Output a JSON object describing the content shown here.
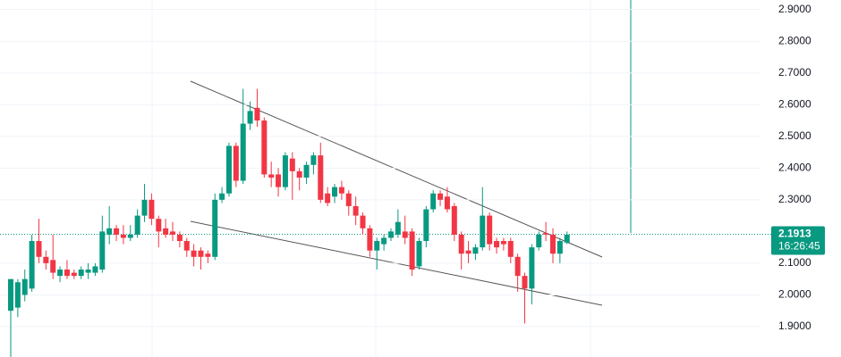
{
  "chart_data": {
    "type": "candlestick",
    "up_color": "#089981",
    "down_color": "#f23645",
    "open": [
      1.95,
      1.96,
      2.0,
      2.02,
      2.17,
      2.12,
      2.11,
      2.06,
      2.08,
      2.07,
      2.06,
      2.07,
      2.07,
      2.08,
      2.19,
      2.21,
      2.19,
      2.18,
      2.19,
      2.25,
      2.3,
      2.24,
      2.21,
      2.2,
      2.19,
      2.17,
      2.14,
      2.14,
      2.13,
      2.12,
      2.3,
      2.32,
      2.47,
      2.36,
      2.54,
      2.59,
      2.55,
      2.38,
      2.38,
      2.34,
      2.43,
      2.39,
      2.37,
      2.41,
      2.44,
      2.32,
      2.31,
      2.34,
      2.32,
      2.28,
      2.25,
      2.21,
      2.14,
      2.16,
      2.18,
      2.19,
      2.2,
      2.2,
      2.09,
      2.17,
      2.27,
      2.32,
      2.31,
      2.28,
      2.19,
      2.14,
      2.13,
      2.15,
      2.25,
      2.17,
      2.17,
      2.17,
      2.12,
      2.06,
      2.02,
      2.15,
      2.195,
      2.19,
      2.13,
      2.165
    ],
    "high": [
      2.05,
      2.05,
      2.08,
      2.19,
      2.24,
      2.14,
      2.19,
      2.09,
      2.11,
      2.08,
      2.09,
      2.1,
      2.1,
      2.25,
      2.28,
      2.22,
      2.22,
      2.22,
      2.27,
      2.35,
      2.32,
      2.25,
      2.24,
      2.23,
      2.2,
      2.18,
      2.16,
      2.15,
      2.14,
      2.32,
      2.34,
      2.48,
      2.48,
      2.65,
      2.61,
      2.65,
      2.56,
      2.42,
      2.4,
      2.45,
      2.45,
      2.4,
      2.42,
      2.45,
      2.48,
      2.34,
      2.35,
      2.36,
      2.33,
      2.31,
      2.26,
      2.22,
      2.18,
      2.19,
      2.21,
      2.27,
      2.25,
      2.21,
      2.18,
      2.28,
      2.33,
      2.33,
      2.34,
      2.29,
      2.2,
      2.17,
      2.16,
      2.34,
      2.26,
      2.18,
      2.18,
      2.18,
      2.13,
      2.07,
      2.16,
      2.2,
      2.23,
      2.21,
      2.18,
      2.2
    ],
    "low": [
      1.8,
      1.93,
      1.98,
      2.01,
      2.1,
      2.08,
      2.05,
      2.04,
      2.05,
      2.05,
      2.05,
      2.05,
      2.06,
      2.07,
      2.16,
      2.17,
      2.16,
      2.17,
      2.18,
      2.23,
      2.22,
      2.15,
      2.18,
      2.17,
      2.15,
      2.12,
      2.09,
      2.08,
      2.1,
      2.11,
      2.29,
      2.31,
      2.34,
      2.35,
      2.52,
      2.53,
      2.37,
      2.34,
      2.31,
      2.33,
      2.3,
      2.33,
      2.35,
      2.38,
      2.29,
      2.28,
      2.29,
      2.3,
      2.25,
      2.22,
      2.19,
      2.12,
      2.08,
      2.14,
      2.17,
      2.18,
      2.16,
      2.06,
      2.08,
      2.15,
      2.26,
      2.28,
      2.26,
      2.17,
      2.08,
      2.1,
      2.11,
      2.14,
      2.14,
      2.13,
      2.14,
      2.1,
      2.01,
      1.91,
      1.97,
      2.14,
      2.17,
      2.1,
      2.1,
      2.16
    ],
    "close": [
      2.05,
      2.04,
      2.05,
      2.17,
      2.12,
      2.1,
      2.07,
      2.08,
      2.06,
      2.06,
      2.08,
      2.08,
      2.09,
      2.2,
      2.21,
      2.19,
      2.18,
      2.19,
      2.25,
      2.3,
      2.24,
      2.2,
      2.19,
      2.19,
      2.17,
      2.14,
      2.12,
      2.12,
      2.12,
      2.3,
      2.32,
      2.47,
      2.36,
      2.54,
      2.58,
      2.55,
      2.38,
      2.37,
      2.34,
      2.44,
      2.39,
      2.37,
      2.41,
      2.44,
      2.3,
      2.29,
      2.34,
      2.32,
      2.28,
      2.25,
      2.21,
      2.14,
      2.17,
      2.18,
      2.2,
      2.23,
      2.18,
      2.08,
      2.17,
      2.27,
      2.32,
      2.3,
      2.27,
      2.19,
      2.13,
      2.13,
      2.15,
      2.25,
      2.16,
      2.15,
      2.16,
      2.12,
      2.06,
      2.02,
      2.15,
      2.19,
      2.19,
      2.13,
      2.17,
      2.19
    ],
    "ylim": [
      1.8,
      2.93
    ],
    "yticks": [
      {
        "value": 1.9,
        "label": "1.9000"
      },
      {
        "value": 2.0,
        "label": "2.0000"
      },
      {
        "value": 2.1,
        "label": "2.1000"
      },
      {
        "value": 2.3,
        "label": "2.3000"
      },
      {
        "value": 2.4,
        "label": "2.4000"
      },
      {
        "value": 2.5,
        "label": "2.5000"
      },
      {
        "value": 2.6,
        "label": "2.6000"
      },
      {
        "value": 2.7,
        "label": "2.7000"
      },
      {
        "value": 2.8,
        "label": "2.8000"
      },
      {
        "value": 2.9,
        "label": "2.9000"
      }
    ],
    "grid": true,
    "last_price": 2.1913,
    "countdown": "16:26:45"
  }
}
